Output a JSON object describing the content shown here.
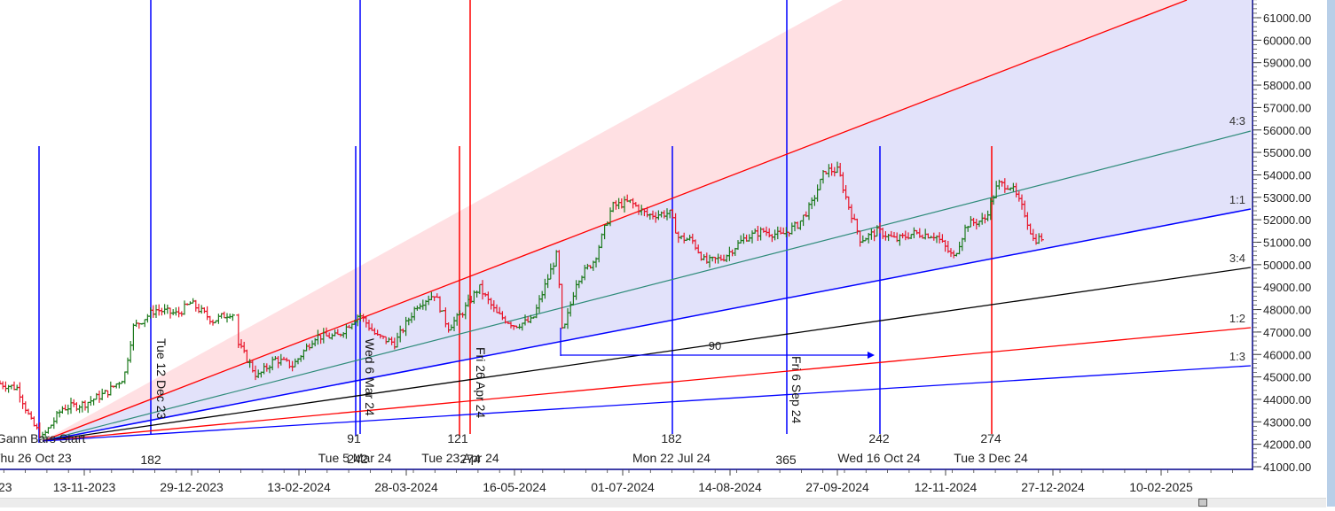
{
  "chart_data": {
    "type": "bar",
    "subtype": "ohlc-bar-with-gann-fan",
    "title": "",
    "xlabel": "",
    "ylabel": "",
    "ylim": [
      41000,
      62000
    ],
    "y_ticks": [
      "61000.00",
      "60000.00",
      "59000.00",
      "58000.00",
      "57000.00",
      "56000.00",
      "55000.00",
      "54000.00",
      "53000.00",
      "52000.00",
      "51000.00",
      "50000.00",
      "49000.00",
      "48000.00",
      "47000.00",
      "46000.00",
      "45000.00",
      "44000.00",
      "43000.00",
      "42000.00",
      "41000.00"
    ],
    "x_ticks": [
      "23",
      "13-11-2023",
      "29-12-2023",
      "13-02-2024",
      "28-03-2024",
      "16-05-2024",
      "01-07-2024",
      "14-08-2024",
      "27-09-2024",
      "12-11-2024",
      "27-12-2024",
      "10-02-2025"
    ],
    "grid": false,
    "legend": null,
    "colors": {
      "up": "#1e7b1e",
      "down": "#e8162a",
      "fan_red": "#ff0000",
      "fan_blue": "#0000ff",
      "fan_green": "#2e8b7a",
      "fan_black": "#000000",
      "zone_red": "#ffe0e3",
      "zone_blue": "#e2e2fa"
    },
    "gann_fan": {
      "origin_label": "Gann Bars Start",
      "origin_date": "Thu 26 Oct 23",
      "origin_price": 42200,
      "lines": [
        {
          "ratio": "2:1",
          "color": "#ff0000",
          "end_price": 63000
        },
        {
          "ratio": "4:3",
          "color": "#2e8b7a",
          "end_price": 56000
        },
        {
          "ratio": "1:1",
          "color": "#0000ff",
          "end_price": 52500
        },
        {
          "ratio": "3:4",
          "color": "#000000",
          "end_price": 50000
        },
        {
          "ratio": "1:2",
          "color": "#ff0000",
          "end_price": 47300
        },
        {
          "ratio": "1:3",
          "color": "#0000ff",
          "end_price": 45500
        }
      ]
    },
    "time_markers": [
      {
        "label": "Thu 26 Oct 23",
        "color": "#0000ff",
        "count": ""
      },
      {
        "label": "Tue 12 Dec 23",
        "color": "#0000ff",
        "count": "182",
        "vertical": true
      },
      {
        "label": "Tue 5 Mar 24",
        "color": "#0000ff",
        "count": "91"
      },
      {
        "label": "Wed 6 Mar 24",
        "color": "#0000ff",
        "count": "242",
        "vertical": true
      },
      {
        "label": "Tue 23 Apr 24",
        "color": "#ff0000",
        "count": "121"
      },
      {
        "label": "Fri 26 Apr 24",
        "color": "#ff0000",
        "count": "274",
        "vertical": true
      },
      {
        "label": "Mon 22 Jul 24",
        "color": "#0000ff",
        "count": "182"
      },
      {
        "label": "Fri 6 Sep 24",
        "color": "#0000ff",
        "count": "365",
        "vertical": true
      },
      {
        "label": "Wed 16 Oct 24",
        "color": "#0000ff",
        "count": "242"
      },
      {
        "label": "Tue 3 Dec 24",
        "color": "#ff0000",
        "count": "274"
      }
    ],
    "annotations": [
      {
        "text": "90",
        "type": "horizontal-arrow",
        "from_price": 46000,
        "color": "#0000ff"
      }
    ],
    "price_series_approx": [
      {
        "date": "Oct-2023 start",
        "close": 44700
      },
      {
        "date": "26-10-2023",
        "close": 42300
      },
      {
        "date": "13-11-2023",
        "close": 43700
      },
      {
        "date": "29-12-2023",
        "close": 48000
      },
      {
        "date": "Jan-2024 gap",
        "close": 46500
      },
      {
        "date": "13-02-2024",
        "close": 46000
      },
      {
        "date": "05-03-2024",
        "close": 47800
      },
      {
        "date": "28-03-2024",
        "close": 47000
      },
      {
        "date": "23-04-2024",
        "close": 49000
      },
      {
        "date": "16-05-2024",
        "close": 47500
      },
      {
        "date": "03-06-2024",
        "close": 47000
      },
      {
        "date": "01-07-2024",
        "close": 52500
      },
      {
        "date": "22-07-2024",
        "close": 52300
      },
      {
        "date": "14-08-2024",
        "close": 50000
      },
      {
        "date": "06-09-2024",
        "close": 51500
      },
      {
        "date": "27-09-2024",
        "close": 54300
      },
      {
        "date": "16-10-2024",
        "close": 51500
      },
      {
        "date": "12-11-2024",
        "close": 50200
      },
      {
        "date": "03-12-2024",
        "close": 53700
      },
      {
        "date": "20-12-2024",
        "close": 51000
      }
    ]
  },
  "chart": {
    "y_axis": [
      "61000.00",
      "60000.00",
      "59000.00",
      "58000.00",
      "57000.00",
      "56000.00",
      "55000.00",
      "54000.00",
      "53000.00",
      "52000.00",
      "51000.00",
      "50000.00",
      "49000.00",
      "48000.00",
      "47000.00",
      "46000.00",
      "45000.00",
      "44000.00",
      "43000.00",
      "42000.00",
      "41000.00"
    ],
    "x_axis": [
      "23",
      "13-11-2023",
      "29-12-2023",
      "13-02-2024",
      "28-03-2024",
      "16-05-2024",
      "01-07-2024",
      "14-08-2024",
      "27-09-2024",
      "12-11-2024",
      "27-12-2024",
      "10-02-2025"
    ],
    "fan_labels": {
      "r43": "4:3",
      "r11": "1:1",
      "r34": "3:4",
      "r12": "1:2",
      "r13": "1:3"
    },
    "gann_start": "Gann Bars Start",
    "bottom_dates": {
      "d1": "Thu 26 Oct 23",
      "d2": "Tue 5 Mar 24",
      "d3": "Tue 23 Apr 24",
      "d4": "Mon 22 Jul 24",
      "d5": "Wed 16 Oct 24",
      "d6": "Tue 3 Dec 24"
    },
    "counts": {
      "c182a": "182",
      "c91": "91",
      "c242a": "242",
      "c121": "121",
      "c274a": "274",
      "c182b": "182",
      "c365": "365",
      "c242b": "242",
      "c274b": "274"
    },
    "vertical_labels": {
      "v1": "Tue 12 Dec 23",
      "v2": "Wed 6 Mar 24",
      "v3": "Fri 26 Apr 24",
      "v4": "Fri 6 Sep 24"
    },
    "arrow_label": "90"
  }
}
